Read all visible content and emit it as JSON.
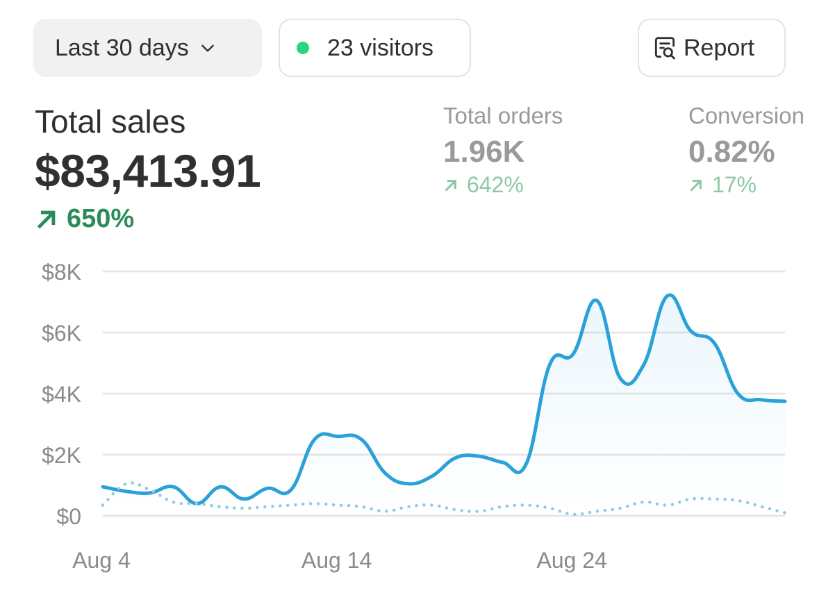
{
  "toolbar": {
    "range_label": "Last 30 days",
    "visitors_label": "23 visitors",
    "report_label": "Report"
  },
  "kpis": {
    "total_sales": {
      "label": "Total sales",
      "value": "$83,413.91",
      "delta": "650%"
    },
    "total_orders": {
      "label": "Total orders",
      "value": "1.96K",
      "delta": "642%"
    },
    "conversion": {
      "label": "Conversion",
      "value": "0.82%",
      "delta": "17%"
    }
  },
  "colors": {
    "primary_line": "#2aa1d8",
    "comparison_line": "#8ccae6",
    "positive_delta": "#2a8c56",
    "muted_delta": "#8fc7a8",
    "live_dot": "#29d67d"
  },
  "chart_data": {
    "type": "line",
    "x_ticks": [
      "Aug 4",
      "Aug 14",
      "Aug 24"
    ],
    "y_ticks": [
      "$8K",
      "$6K",
      "$4K",
      "$2K",
      "$0"
    ],
    "ylim": [
      0,
      8000
    ],
    "x": [
      1,
      2,
      3,
      4,
      5,
      6,
      7,
      8,
      9,
      10,
      11,
      12,
      13,
      14,
      15,
      16,
      17,
      18,
      19,
      20,
      21,
      22,
      23,
      24,
      25,
      26,
      27,
      28,
      29,
      30
    ],
    "series": [
      {
        "values": [
          950,
          800,
          750,
          950,
          400,
          950,
          550,
          900,
          850,
          2500,
          2600,
          2500,
          1400,
          1050,
          1300,
          1900,
          1950,
          1750,
          1700,
          4950,
          5300,
          7050,
          4500,
          4950,
          7200,
          6050,
          5650,
          4000,
          3800,
          3750
        ],
        "style": "solid"
      },
      {
        "values": [
          350,
          1050,
          850,
          450,
          400,
          300,
          250,
          300,
          350,
          400,
          350,
          300,
          150,
          300,
          350,
          200,
          150,
          300,
          350,
          250,
          50,
          150,
          250,
          450,
          350,
          550,
          550,
          500,
          300,
          100
        ],
        "style": "dotted"
      }
    ],
    "grid": true
  }
}
